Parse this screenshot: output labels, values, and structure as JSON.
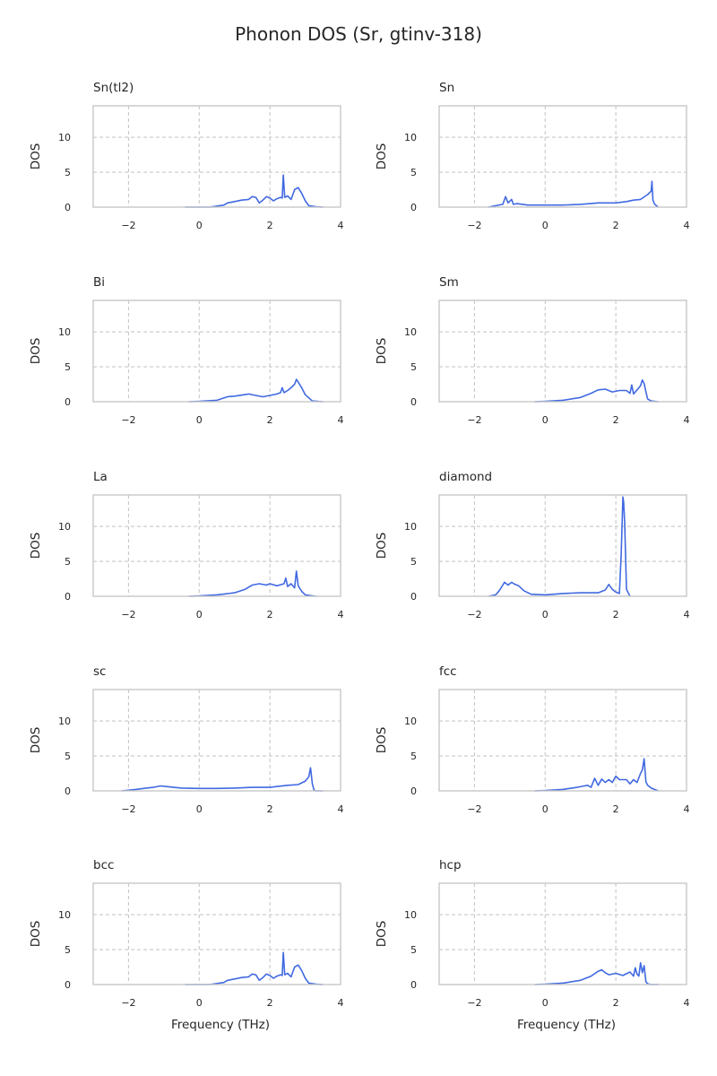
{
  "figure": {
    "title": "Phonon DOS (Sr, gtinv-318)",
    "line_color": "#4169e1",
    "grid_color": "#c8c8c8",
    "spine_color": "#c8c8c8"
  },
  "chart_data": [
    {
      "type": "line",
      "title": "Sn(tl2)",
      "xlabel": "",
      "ylabel": "DOS",
      "xlim": [
        -3,
        4
      ],
      "ylim": [
        0,
        14.5
      ],
      "xticks": [
        -2,
        0,
        2,
        4
      ],
      "yticks": [
        0,
        5,
        10
      ],
      "grid": true,
      "grid_style": "dashed",
      "series": [
        {
          "x": [
            -0.4,
            0.3,
            0.7,
            0.8,
            1.0,
            1.2,
            1.4,
            1.5,
            1.6,
            1.7,
            1.8,
            1.9,
            2.0,
            2.1,
            2.2,
            2.3,
            2.35,
            2.38,
            2.42,
            2.5,
            2.6,
            2.7,
            2.8,
            2.9,
            3.0,
            3.1,
            3.3,
            3.5
          ],
          "y": [
            0,
            0,
            0.3,
            0.6,
            0.8,
            1.0,
            1.1,
            1.5,
            1.4,
            0.6,
            1.0,
            1.5,
            1.3,
            0.9,
            1.2,
            1.4,
            1.3,
            4.6,
            1.4,
            1.6,
            1.1,
            2.5,
            2.8,
            2.0,
            0.9,
            0.2,
            0.05,
            0
          ]
        }
      ]
    },
    {
      "type": "line",
      "title": "Sn",
      "xlabel": "",
      "ylabel": "DOS",
      "xlim": [
        -3,
        4
      ],
      "ylim": [
        0,
        14.5
      ],
      "xticks": [
        -2,
        0,
        2,
        4
      ],
      "yticks": [
        0,
        5,
        10
      ],
      "grid": true,
      "grid_style": "dashed",
      "series": [
        {
          "x": [
            -1.6,
            -1.4,
            -1.2,
            -1.12,
            -1.05,
            -0.95,
            -0.9,
            -0.8,
            -0.5,
            0,
            0.5,
            1.0,
            1.5,
            2.0,
            2.3,
            2.5,
            2.7,
            2.9,
            3.0,
            3.02,
            3.05,
            3.1,
            3.2
          ],
          "y": [
            0,
            0.2,
            0.4,
            1.5,
            0.6,
            1.1,
            0.4,
            0.5,
            0.3,
            0.3,
            0.3,
            0.4,
            0.6,
            0.6,
            0.8,
            1.0,
            1.1,
            1.8,
            2.3,
            3.7,
            1.0,
            0.4,
            0
          ]
        }
      ]
    },
    {
      "type": "line",
      "title": "Bi",
      "xlabel": "",
      "ylabel": "DOS",
      "xlim": [
        -3,
        4
      ],
      "ylim": [
        0,
        14.5
      ],
      "xticks": [
        -2,
        0,
        2,
        4
      ],
      "yticks": [
        0,
        5,
        10
      ],
      "grid": true,
      "grid_style": "dashed",
      "series": [
        {
          "x": [
            -0.3,
            0,
            0.5,
            0.8,
            1.0,
            1.4,
            1.6,
            1.8,
            2.0,
            2.2,
            2.3,
            2.35,
            2.4,
            2.5,
            2.6,
            2.7,
            2.75,
            2.8,
            2.9,
            3.0,
            3.2,
            3.5
          ],
          "y": [
            0,
            0.05,
            0.2,
            0.7,
            0.8,
            1.1,
            0.9,
            0.7,
            0.9,
            1.1,
            1.3,
            2.0,
            1.3,
            1.6,
            2.0,
            2.5,
            3.2,
            2.8,
            2.0,
            1.0,
            0.1,
            0
          ]
        }
      ]
    },
    {
      "type": "line",
      "title": "Sm",
      "xlabel": "",
      "ylabel": "DOS",
      "xlim": [
        -3,
        4
      ],
      "ylim": [
        0,
        14.5
      ],
      "xticks": [
        -2,
        0,
        2,
        4
      ],
      "yticks": [
        0,
        5,
        10
      ],
      "grid": true,
      "grid_style": "dashed",
      "series": [
        {
          "x": [
            -0.3,
            0,
            0.5,
            1.0,
            1.3,
            1.5,
            1.7,
            1.9,
            2.1,
            2.3,
            2.4,
            2.45,
            2.5,
            2.6,
            2.7,
            2.75,
            2.8,
            2.85,
            2.9,
            3.0,
            3.2
          ],
          "y": [
            0,
            0.05,
            0.2,
            0.6,
            1.2,
            1.7,
            1.8,
            1.4,
            1.6,
            1.6,
            1.2,
            2.4,
            1.1,
            1.7,
            2.3,
            3.1,
            2.6,
            1.4,
            0.4,
            0.1,
            0
          ]
        }
      ]
    },
    {
      "type": "line",
      "title": "La",
      "xlabel": "",
      "ylabel": "DOS",
      "xlim": [
        -3,
        4
      ],
      "ylim": [
        0,
        14.5
      ],
      "xticks": [
        -2,
        0,
        2,
        4
      ],
      "yticks": [
        0,
        5,
        10
      ],
      "grid": true,
      "grid_style": "dashed",
      "series": [
        {
          "x": [
            -0.3,
            0,
            0.5,
            1.0,
            1.3,
            1.5,
            1.7,
            1.9,
            2.0,
            2.2,
            2.4,
            2.45,
            2.5,
            2.6,
            2.7,
            2.75,
            2.8,
            2.9,
            3.0,
            3.3
          ],
          "y": [
            0,
            0.05,
            0.2,
            0.5,
            1.0,
            1.6,
            1.8,
            1.6,
            1.8,
            1.5,
            1.8,
            2.6,
            1.4,
            1.8,
            1.2,
            3.6,
            1.5,
            0.7,
            0.2,
            0
          ]
        }
      ]
    },
    {
      "type": "line",
      "title": "diamond",
      "xlabel": "",
      "ylabel": "DOS",
      "xlim": [
        -3,
        4
      ],
      "ylim": [
        0,
        14.5
      ],
      "xticks": [
        -2,
        0,
        2,
        4
      ],
      "yticks": [
        0,
        5,
        10
      ],
      "grid": true,
      "grid_style": "dashed",
      "series": [
        {
          "x": [
            -1.6,
            -1.4,
            -1.3,
            -1.2,
            -1.15,
            -1.05,
            -0.95,
            -0.85,
            -0.75,
            -0.6,
            -0.4,
            0,
            0.5,
            1.0,
            1.5,
            1.7,
            1.8,
            1.9,
            2.0,
            2.1,
            2.15,
            2.2,
            2.22,
            2.25,
            2.3,
            2.4
          ],
          "y": [
            0,
            0.2,
            0.8,
            1.6,
            2.0,
            1.6,
            2.0,
            1.7,
            1.5,
            0.8,
            0.3,
            0.2,
            0.4,
            0.5,
            0.5,
            0.9,
            1.7,
            1.0,
            0.6,
            0.4,
            6.0,
            14.2,
            13.5,
            10.5,
            1.0,
            0
          ]
        }
      ]
    },
    {
      "type": "line",
      "title": "sc",
      "xlabel": "",
      "ylabel": "DOS",
      "xlim": [
        -3,
        4
      ],
      "ylim": [
        0,
        14.5
      ],
      "xticks": [
        -2,
        0,
        2,
        4
      ],
      "yticks": [
        0,
        5,
        10
      ],
      "grid": true,
      "grid_style": "dashed",
      "series": [
        {
          "x": [
            -2.2,
            -1.8,
            -1.5,
            -1.3,
            -1.1,
            -0.9,
            -0.5,
            0,
            0.5,
            1.0,
            1.5,
            2.0,
            2.5,
            2.8,
            3.0,
            3.1,
            3.15,
            3.2,
            3.25,
            3.3,
            3.5
          ],
          "y": [
            0,
            0.2,
            0.4,
            0.5,
            0.7,
            0.6,
            0.4,
            0.35,
            0.35,
            0.4,
            0.5,
            0.5,
            0.8,
            0.9,
            1.4,
            2.0,
            3.3,
            1.0,
            0.1,
            0,
            0
          ]
        }
      ]
    },
    {
      "type": "line",
      "title": "fcc",
      "xlabel": "",
      "ylabel": "DOS",
      "xlim": [
        -3,
        4
      ],
      "ylim": [
        0,
        14.5
      ],
      "xticks": [
        -2,
        0,
        2,
        4
      ],
      "yticks": [
        0,
        5,
        10
      ],
      "grid": true,
      "grid_style": "dashed",
      "series": [
        {
          "x": [
            -0.3,
            0,
            0.5,
            0.9,
            1.1,
            1.2,
            1.3,
            1.4,
            1.5,
            1.6,
            1.7,
            1.8,
            1.9,
            2.0,
            2.1,
            2.3,
            2.4,
            2.5,
            2.6,
            2.7,
            2.75,
            2.8,
            2.85,
            2.9,
            3.0,
            3.2
          ],
          "y": [
            0,
            0.05,
            0.2,
            0.5,
            0.7,
            0.8,
            0.5,
            1.8,
            0.8,
            1.7,
            1.2,
            1.6,
            1.2,
            2.1,
            1.6,
            1.6,
            1.0,
            1.6,
            1.2,
            2.5,
            3.0,
            4.6,
            1.3,
            0.8,
            0.4,
            0
          ]
        }
      ]
    },
    {
      "type": "line",
      "title": "bcc",
      "xlabel": "",
      "ylabel": "DOS",
      "xlim": [
        -3,
        4
      ],
      "ylim": [
        0,
        14.5
      ],
      "xticks": [
        -2,
        0,
        2,
        4
      ],
      "yticks": [
        0,
        5,
        10
      ],
      "grid": true,
      "grid_style": "dashed",
      "series": [
        {
          "x": [
            -0.4,
            0.3,
            0.7,
            0.8,
            1.0,
            1.2,
            1.4,
            1.5,
            1.6,
            1.7,
            1.8,
            1.9,
            2.0,
            2.1,
            2.2,
            2.3,
            2.35,
            2.38,
            2.42,
            2.5,
            2.6,
            2.7,
            2.8,
            2.9,
            3.0,
            3.1,
            3.3,
            3.5
          ],
          "y": [
            0,
            0,
            0.3,
            0.6,
            0.8,
            1.0,
            1.1,
            1.5,
            1.4,
            0.6,
            1.0,
            1.5,
            1.3,
            0.9,
            1.2,
            1.4,
            1.3,
            4.6,
            1.4,
            1.6,
            1.1,
            2.5,
            2.8,
            2.0,
            0.9,
            0.2,
            0.05,
            0
          ]
        }
      ]
    },
    {
      "type": "line",
      "title": "hcp",
      "xlabel": "",
      "ylabel": "DOS",
      "xlim": [
        -3,
        4
      ],
      "ylim": [
        0,
        14.5
      ],
      "xticks": [
        -2,
        0,
        2,
        4
      ],
      "yticks": [
        0,
        5,
        10
      ],
      "grid": true,
      "grid_style": "dashed",
      "series": [
        {
          "x": [
            -0.3,
            0,
            0.5,
            1.0,
            1.3,
            1.5,
            1.6,
            1.7,
            1.8,
            2.0,
            2.2,
            2.4,
            2.5,
            2.55,
            2.6,
            2.65,
            2.7,
            2.75,
            2.8,
            2.85,
            2.9,
            3.0,
            3.2
          ],
          "y": [
            0,
            0.05,
            0.2,
            0.6,
            1.2,
            1.9,
            2.1,
            1.7,
            1.4,
            1.6,
            1.3,
            1.8,
            1.2,
            2.4,
            1.5,
            1.2,
            3.1,
            1.7,
            2.7,
            0.4,
            0.1,
            0,
            0
          ]
        }
      ]
    }
  ],
  "axis_labels": {
    "bottom_left_xlabel": "Frequency (THz)",
    "bottom_right_xlabel": "Frequency (THz)"
  }
}
